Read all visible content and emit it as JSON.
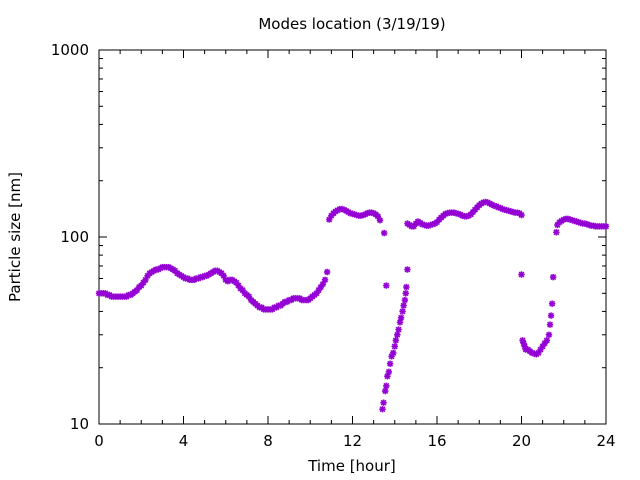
{
  "chart_data": {
    "type": "scatter",
    "title": "Modes location (3/19/19)",
    "xlabel": "Time [hour]",
    "ylabel": "Particle size [nm]",
    "xlim": [
      0,
      24
    ],
    "ylim": [
      10,
      1000
    ],
    "y_scale": "log",
    "grid": false,
    "legend": "none",
    "marker": "asterisk",
    "color": "#9400d3",
    "x_ticks": [
      {
        "value": 0,
        "label": "0"
      },
      {
        "value": 4,
        "label": "4"
      },
      {
        "value": 8,
        "label": "8"
      },
      {
        "value": 12,
        "label": "12"
      },
      {
        "value": 16,
        "label": "16"
      },
      {
        "value": 20,
        "label": "20"
      },
      {
        "value": 24,
        "label": "24"
      }
    ],
    "y_ticks": [
      {
        "value": 10,
        "label": "10"
      },
      {
        "value": 100,
        "label": "100"
      },
      {
        "value": 1000,
        "label": "1000"
      }
    ],
    "series": [
      {
        "points": [
          [
            0.0,
            50
          ],
          [
            0.1,
            50
          ],
          [
            0.2,
            50
          ],
          [
            0.3,
            50
          ],
          [
            0.4,
            49
          ],
          [
            0.5,
            49
          ],
          [
            0.6,
            48
          ],
          [
            0.7,
            48
          ],
          [
            0.8,
            48
          ],
          [
            0.9,
            48
          ],
          [
            1.0,
            48
          ],
          [
            1.1,
            48
          ],
          [
            1.2,
            48
          ],
          [
            1.3,
            48
          ],
          [
            1.4,
            49
          ],
          [
            1.5,
            49
          ],
          [
            1.6,
            50
          ],
          [
            1.7,
            51
          ],
          [
            1.8,
            52
          ],
          [
            1.9,
            54
          ],
          [
            2.0,
            55
          ],
          [
            2.1,
            57
          ],
          [
            2.2,
            59
          ],
          [
            2.3,
            62
          ],
          [
            2.4,
            64
          ],
          [
            2.5,
            65
          ],
          [
            2.6,
            66
          ],
          [
            2.7,
            67
          ],
          [
            2.8,
            67
          ],
          [
            2.9,
            68
          ],
          [
            3.0,
            69
          ],
          [
            3.1,
            69
          ],
          [
            3.2,
            69
          ],
          [
            3.3,
            69
          ],
          [
            3.4,
            68
          ],
          [
            3.5,
            67
          ],
          [
            3.6,
            66
          ],
          [
            3.7,
            64
          ],
          [
            3.8,
            63
          ],
          [
            3.9,
            62
          ],
          [
            4.0,
            61
          ],
          [
            4.1,
            60
          ],
          [
            4.2,
            60
          ],
          [
            4.3,
            59
          ],
          [
            4.4,
            59
          ],
          [
            4.5,
            59
          ],
          [
            4.6,
            60
          ],
          [
            4.7,
            60
          ],
          [
            4.8,
            61
          ],
          [
            4.9,
            61
          ],
          [
            5.0,
            62
          ],
          [
            5.1,
            62
          ],
          [
            5.2,
            63
          ],
          [
            5.3,
            64
          ],
          [
            5.4,
            65
          ],
          [
            5.5,
            66
          ],
          [
            5.6,
            66
          ],
          [
            5.7,
            65
          ],
          [
            5.8,
            64
          ],
          [
            5.9,
            62
          ],
          [
            6.0,
            59
          ],
          [
            6.1,
            58
          ],
          [
            6.2,
            59
          ],
          [
            6.3,
            59
          ],
          [
            6.4,
            58
          ],
          [
            6.5,
            57
          ],
          [
            6.6,
            55
          ],
          [
            6.7,
            53
          ],
          [
            6.8,
            52
          ],
          [
            6.9,
            50
          ],
          [
            7.0,
            49
          ],
          [
            7.1,
            48
          ],
          [
            7.2,
            46
          ],
          [
            7.3,
            45
          ],
          [
            7.4,
            44
          ],
          [
            7.5,
            43
          ],
          [
            7.6,
            42
          ],
          [
            7.7,
            42
          ],
          [
            7.8,
            41
          ],
          [
            7.9,
            41
          ],
          [
            8.0,
            41
          ],
          [
            8.1,
            41
          ],
          [
            8.2,
            41
          ],
          [
            8.3,
            42
          ],
          [
            8.4,
            42
          ],
          [
            8.5,
            43
          ],
          [
            8.6,
            43
          ],
          [
            8.7,
            44
          ],
          [
            8.8,
            45
          ],
          [
            8.9,
            45
          ],
          [
            9.0,
            46
          ],
          [
            9.1,
            46
          ],
          [
            9.2,
            47
          ],
          [
            9.3,
            47
          ],
          [
            9.4,
            47
          ],
          [
            9.5,
            47
          ],
          [
            9.6,
            46
          ],
          [
            9.7,
            46
          ],
          [
            9.8,
            46
          ],
          [
            9.9,
            46
          ],
          [
            10.0,
            47
          ],
          [
            10.1,
            48
          ],
          [
            10.2,
            49
          ],
          [
            10.3,
            50
          ],
          [
            10.4,
            52
          ],
          [
            10.5,
            54
          ],
          [
            10.6,
            56
          ],
          [
            10.7,
            59
          ],
          [
            10.8,
            65
          ]
        ]
      },
      {
        "points": [
          [
            10.9,
            124
          ],
          [
            11.0,
            130
          ],
          [
            11.1,
            134
          ],
          [
            11.2,
            137
          ],
          [
            11.3,
            139
          ],
          [
            11.4,
            141
          ],
          [
            11.5,
            141
          ],
          [
            11.6,
            140
          ],
          [
            11.7,
            138
          ],
          [
            11.8,
            136
          ],
          [
            11.9,
            134
          ],
          [
            12.0,
            133
          ],
          [
            12.1,
            132
          ],
          [
            12.2,
            131
          ],
          [
            12.3,
            130
          ],
          [
            12.4,
            130
          ],
          [
            12.5,
            131
          ],
          [
            12.6,
            132
          ],
          [
            12.7,
            134
          ],
          [
            12.8,
            135
          ],
          [
            12.9,
            135
          ],
          [
            13.0,
            134
          ],
          [
            13.1,
            132
          ],
          [
            13.2,
            129
          ],
          [
            13.3,
            123
          ],
          [
            13.5,
            105
          ]
        ]
      },
      {
        "points": [
          [
            13.42,
            12
          ],
          [
            13.47,
            13
          ],
          [
            13.55,
            15
          ],
          [
            13.6,
            16
          ],
          [
            13.65,
            18
          ],
          [
            13.72,
            19
          ],
          [
            13.78,
            21
          ],
          [
            13.85,
            23
          ],
          [
            13.93,
            24
          ],
          [
            14.0,
            26
          ],
          [
            14.05,
            28
          ],
          [
            14.12,
            30
          ],
          [
            14.18,
            32
          ],
          [
            14.25,
            35
          ],
          [
            14.3,
            37
          ],
          [
            14.37,
            40
          ],
          [
            14.42,
            43
          ],
          [
            14.48,
            46
          ],
          [
            14.52,
            50
          ],
          [
            14.55,
            54
          ],
          [
            13.6,
            55
          ],
          [
            14.6,
            67
          ]
        ]
      },
      {
        "points": [
          [
            14.6,
            118
          ],
          [
            14.7,
            116
          ],
          [
            14.8,
            114
          ],
          [
            14.9,
            114
          ],
          [
            15.0,
            118
          ],
          [
            15.1,
            121
          ],
          [
            15.2,
            119
          ],
          [
            15.3,
            117
          ],
          [
            15.4,
            116
          ],
          [
            15.5,
            115
          ],
          [
            15.6,
            115
          ],
          [
            15.7,
            116
          ],
          [
            15.8,
            117
          ],
          [
            15.9,
            118
          ],
          [
            16.0,
            120
          ],
          [
            16.1,
            124
          ],
          [
            16.2,
            127
          ],
          [
            16.3,
            130
          ],
          [
            16.4,
            133
          ],
          [
            16.5,
            134
          ],
          [
            16.6,
            135
          ],
          [
            16.7,
            135
          ],
          [
            16.8,
            135
          ],
          [
            16.9,
            134
          ],
          [
            17.0,
            133
          ],
          [
            17.1,
            132
          ],
          [
            17.2,
            130
          ],
          [
            17.3,
            129
          ],
          [
            17.4,
            129
          ],
          [
            17.5,
            130
          ],
          [
            17.6,
            132
          ],
          [
            17.7,
            136
          ],
          [
            17.8,
            140
          ],
          [
            17.9,
            144
          ],
          [
            18.0,
            148
          ],
          [
            18.1,
            151
          ],
          [
            18.2,
            153
          ],
          [
            18.3,
            154
          ],
          [
            18.4,
            153
          ],
          [
            18.5,
            151
          ],
          [
            18.6,
            149
          ],
          [
            18.7,
            147
          ],
          [
            18.8,
            146
          ],
          [
            18.9,
            144
          ],
          [
            19.0,
            143
          ],
          [
            19.1,
            141
          ],
          [
            19.2,
            140
          ],
          [
            19.3,
            139
          ],
          [
            19.4,
            138
          ],
          [
            19.5,
            137
          ],
          [
            19.6,
            136
          ],
          [
            19.7,
            135
          ],
          [
            19.8,
            135
          ],
          [
            19.9,
            134
          ],
          [
            20.0,
            131
          ]
        ]
      },
      {
        "points": [
          [
            20.0,
            63
          ],
          [
            20.05,
            28
          ],
          [
            20.1,
            27
          ],
          [
            20.15,
            26
          ],
          [
            20.2,
            25
          ],
          [
            20.3,
            25
          ],
          [
            20.4,
            24.5
          ],
          [
            20.5,
            24
          ],
          [
            20.6,
            23.8
          ],
          [
            20.7,
            23.6
          ],
          [
            20.8,
            24
          ],
          [
            20.9,
            25
          ],
          [
            21.0,
            26
          ],
          [
            21.1,
            27
          ],
          [
            21.2,
            28
          ],
          [
            21.3,
            30
          ],
          [
            21.35,
            34
          ],
          [
            21.4,
            38
          ],
          [
            21.45,
            44
          ],
          [
            21.5,
            61
          ]
        ]
      },
      {
        "points": [
          [
            21.65,
            106
          ],
          [
            21.7,
            116
          ],
          [
            21.8,
            120
          ],
          [
            21.9,
            122
          ],
          [
            22.0,
            124
          ],
          [
            22.1,
            125
          ],
          [
            22.2,
            125
          ],
          [
            22.3,
            124
          ],
          [
            22.4,
            123
          ],
          [
            22.5,
            122
          ],
          [
            22.6,
            121
          ],
          [
            22.7,
            120
          ],
          [
            22.8,
            119
          ],
          [
            22.9,
            118
          ],
          [
            23.0,
            118
          ],
          [
            23.1,
            117
          ],
          [
            23.2,
            116
          ],
          [
            23.3,
            115
          ],
          [
            23.4,
            115
          ],
          [
            23.5,
            114
          ],
          [
            23.6,
            114
          ],
          [
            23.7,
            114
          ],
          [
            23.8,
            114
          ],
          [
            23.9,
            114
          ],
          [
            24.0,
            114
          ]
        ]
      }
    ]
  }
}
